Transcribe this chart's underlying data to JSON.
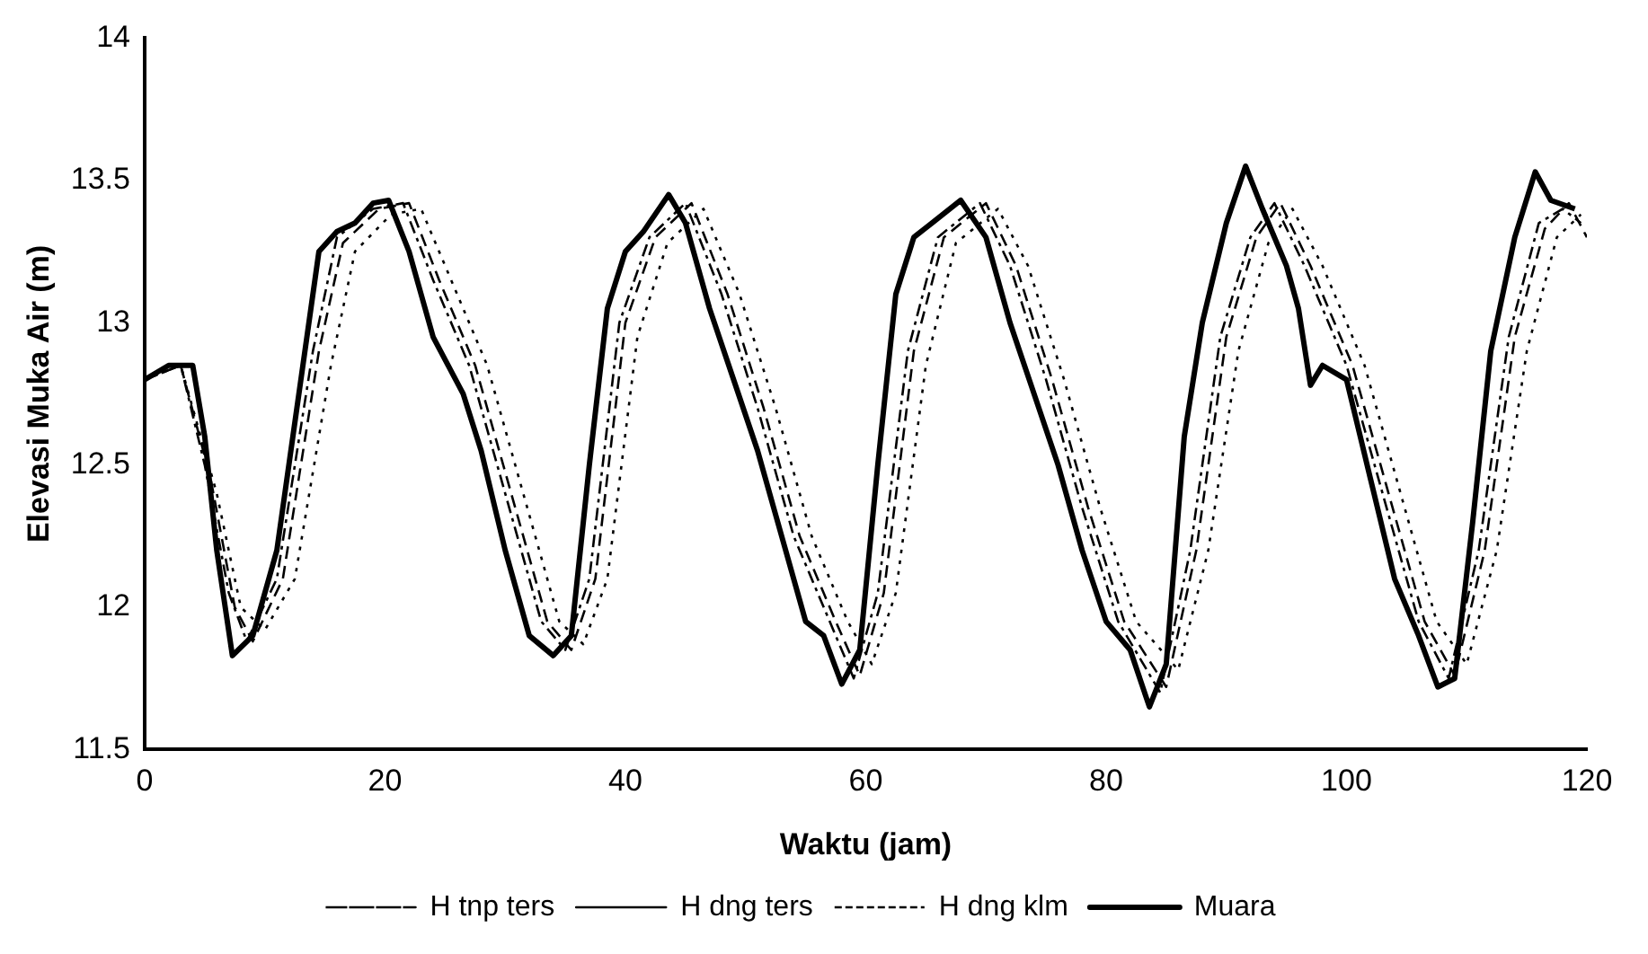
{
  "chart_data": {
    "type": "line",
    "xlabel": "Waktu (jam)",
    "ylabel": "Elevasi Muka Air (m)",
    "xlim": [
      0,
      120
    ],
    "xticks": [
      0,
      20,
      40,
      60,
      80,
      100,
      120
    ],
    "ylim": [
      11.5,
      14
    ],
    "yticks": [
      11.5,
      12,
      12.5,
      13,
      13.5,
      14
    ],
    "grid": false,
    "legend": "bottom",
    "marker": "none",
    "series": [
      {
        "name": "H tnp ters",
        "color": "#000000",
        "line_style": "dashdot",
        "x": [
          0,
          3,
          5,
          7,
          8.5,
          11,
          14,
          16,
          19,
          21.5,
          24,
          27,
          30,
          33,
          35,
          37,
          39.5,
          42,
          45,
          48,
          51,
          54,
          57,
          59,
          61,
          63.5,
          66,
          69.5,
          72,
          75,
          78,
          81,
          84.5,
          87,
          89.5,
          92,
          94,
          96.5,
          100,
          103,
          106,
          108.5,
          111,
          113.5,
          116,
          118,
          119.5
        ],
        "values": [
          12.8,
          12.85,
          12.5,
          12.05,
          11.88,
          12.1,
          12.9,
          13.3,
          13.4,
          13.42,
          13.15,
          12.85,
          12.4,
          11.95,
          11.85,
          12.1,
          13.0,
          13.3,
          13.42,
          13.1,
          12.7,
          12.25,
          11.95,
          11.75,
          12.05,
          12.9,
          13.3,
          13.42,
          13.2,
          12.8,
          12.35,
          11.95,
          11.7,
          12.2,
          12.95,
          13.3,
          13.42,
          13.2,
          12.85,
          12.4,
          11.95,
          11.75,
          12.2,
          12.95,
          13.35,
          13.4,
          13.35
        ]
      },
      {
        "name": "H dng ters",
        "color": "#000000",
        "line_style": "dashed",
        "x": [
          0,
          3,
          5.5,
          7.5,
          9,
          11.5,
          14.5,
          16.5,
          19.5,
          22,
          24.5,
          27.5,
          30.5,
          33.5,
          35.5,
          37.5,
          40,
          42.5,
          45.5,
          48.5,
          51.5,
          54.5,
          57.5,
          59.5,
          61.5,
          64,
          66.5,
          70,
          72.5,
          75.5,
          78.5,
          81.5,
          85,
          87.5,
          90,
          92.5,
          94.5,
          97,
          100.5,
          103.5,
          106.5,
          109,
          111.5,
          114,
          116.5,
          118.5,
          120
        ],
        "values": [
          12.8,
          12.85,
          12.45,
          12.0,
          11.88,
          12.1,
          12.9,
          13.28,
          13.4,
          13.42,
          13.15,
          12.85,
          12.4,
          11.95,
          11.85,
          12.1,
          13.0,
          13.3,
          13.42,
          13.1,
          12.7,
          12.25,
          11.95,
          11.76,
          12.05,
          12.9,
          13.3,
          13.42,
          13.2,
          12.8,
          12.35,
          11.95,
          11.72,
          12.2,
          12.95,
          13.3,
          13.42,
          13.2,
          12.85,
          12.4,
          11.95,
          11.76,
          12.2,
          12.95,
          13.33,
          13.42,
          13.3
        ]
      },
      {
        "name": "H dng klm",
        "color": "#000000",
        "line_style": "dotted",
        "x": [
          0,
          3,
          6,
          8,
          10,
          12.5,
          15.5,
          17.5,
          20.5,
          23,
          25.5,
          28.5,
          31.5,
          34.5,
          36.5,
          38.5,
          41,
          43.5,
          46.5,
          49.5,
          52.5,
          55.5,
          58.5,
          60.5,
          62.5,
          65,
          67.5,
          71,
          73.5,
          76.5,
          79.5,
          82.5,
          86,
          88.5,
          91,
          93.5,
          95.5,
          98,
          101.5,
          104.5,
          107.5,
          110,
          112.5,
          115,
          117.5,
          119.5
        ],
        "values": [
          12.8,
          12.85,
          12.4,
          12.0,
          11.92,
          12.1,
          12.85,
          13.25,
          13.38,
          13.4,
          13.15,
          12.85,
          12.4,
          11.95,
          11.87,
          12.1,
          12.95,
          13.28,
          13.4,
          13.1,
          12.7,
          12.25,
          11.95,
          11.8,
          12.05,
          12.85,
          13.28,
          13.4,
          13.2,
          12.8,
          12.35,
          11.95,
          11.78,
          12.2,
          12.9,
          13.28,
          13.4,
          13.2,
          12.85,
          12.4,
          11.95,
          11.8,
          12.2,
          12.9,
          13.3,
          13.38
        ]
      },
      {
        "name": "Muara",
        "color": "#000000",
        "line_style": "solid",
        "x": [
          0,
          2,
          4,
          5,
          6,
          7.3,
          9,
          11,
          13,
          14.5,
          16,
          17.5,
          19,
          20.3,
          22,
          24,
          26.5,
          28,
          30,
          32,
          34,
          35.5,
          37,
          38.5,
          40,
          41.5,
          43.6,
          45,
          47,
          49,
          51,
          53,
          55,
          56.5,
          58,
          59.5,
          61,
          62.5,
          64,
          65.5,
          67.9,
          70,
          72,
          74,
          76,
          78,
          80,
          82,
          83.6,
          85,
          86.5,
          88,
          90,
          91.6,
          93,
          95,
          96,
          97,
          98,
          100,
          102,
          104,
          106,
          107.6,
          109,
          110.5,
          112,
          114,
          115.7,
          117,
          119
        ],
        "values": [
          12.8,
          12.85,
          12.85,
          12.6,
          12.2,
          11.83,
          11.9,
          12.2,
          12.8,
          13.25,
          13.32,
          13.35,
          13.42,
          13.43,
          13.25,
          12.95,
          12.75,
          12.55,
          12.2,
          11.9,
          11.83,
          11.9,
          12.5,
          13.05,
          13.25,
          13.32,
          13.45,
          13.35,
          13.05,
          12.8,
          12.55,
          12.25,
          11.95,
          11.9,
          11.73,
          11.85,
          12.5,
          13.1,
          13.3,
          13.35,
          13.43,
          13.3,
          13.0,
          12.75,
          12.5,
          12.2,
          11.95,
          11.85,
          11.65,
          11.8,
          12.6,
          13.0,
          13.35,
          13.55,
          13.4,
          13.2,
          13.05,
          12.78,
          12.85,
          12.8,
          12.45,
          12.1,
          11.9,
          11.72,
          11.75,
          12.3,
          12.9,
          13.3,
          13.53,
          13.43,
          13.4
        ]
      }
    ]
  }
}
